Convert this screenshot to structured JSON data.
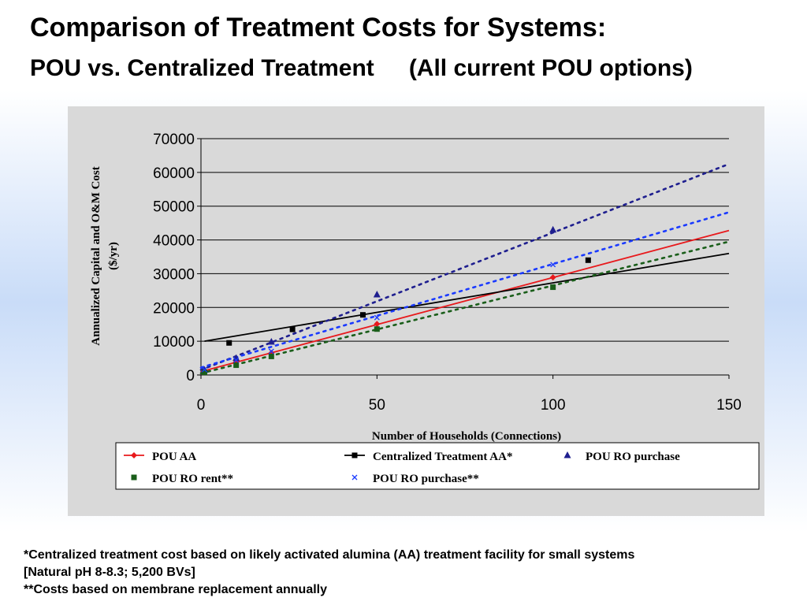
{
  "header": {
    "title": "Comparison of Treatment Costs for Systems:",
    "subtitle_left": "POU vs. Centralized Treatment",
    "subtitle_right": "(All current POU options)"
  },
  "footnotes": {
    "line1": "*Centralized treatment cost based on likely activated alumina (AA) treatment facility for small systems",
    "line2": "[Natural pH 8-8.3; 5,200 BVs]",
    "line3": "**Costs based on membrane replacement annually"
  },
  "chart_data": {
    "type": "scatter",
    "xlabel": "Number of Households (Connections)",
    "ylabel": "Annualized Capital and O&M Cost ($/yr)",
    "xlim": [
      0,
      150
    ],
    "ylim": [
      0,
      70000
    ],
    "xticks": [
      0,
      50,
      100,
      150
    ],
    "yticks": [
      0,
      10000,
      20000,
      30000,
      40000,
      50000,
      60000,
      70000
    ],
    "grid": "horizontal",
    "legend_position": "bottom",
    "series": [
      {
        "name": "POU AA",
        "color": "#e8191c",
        "marker": "diamond",
        "trendline": "solid",
        "points": [
          [
            1,
            1300
          ],
          [
            10,
            3900
          ],
          [
            20,
            6500
          ],
          [
            50,
            15100
          ],
          [
            100,
            28900
          ]
        ],
        "trend": [
          [
            0,
            1000
          ],
          [
            150,
            42800
          ]
        ]
      },
      {
        "name": "Centralized Treatment AA*",
        "color": "#000000",
        "marker": "square",
        "trendline": "solid",
        "points": [
          [
            8,
            9500
          ],
          [
            26,
            13500
          ],
          [
            46,
            17800
          ],
          [
            110,
            34000
          ]
        ],
        "trend": [
          [
            1,
            10000
          ],
          [
            150,
            36000
          ]
        ]
      },
      {
        "name": "POU RO purchase",
        "color": "#1f1f8f",
        "marker": "triangle",
        "trendline": "dotted",
        "points": [
          [
            1,
            1500
          ],
          [
            10,
            5000
          ],
          [
            20,
            9800
          ],
          [
            50,
            23800
          ],
          [
            100,
            43000
          ]
        ],
        "trend": [
          [
            0,
            1500
          ],
          [
            150,
            62500
          ]
        ]
      },
      {
        "name": "POU RO rent**",
        "color": "#1a5e1a",
        "marker": "square",
        "trendline": "dotted",
        "points": [
          [
            1,
            800
          ],
          [
            10,
            2900
          ],
          [
            20,
            5500
          ],
          [
            50,
            13600
          ],
          [
            100,
            26000
          ]
        ],
        "trend": [
          [
            0,
            500
          ],
          [
            150,
            39500
          ]
        ]
      },
      {
        "name": "POU RO purchase**",
        "color": "#1a3aff",
        "marker": "x",
        "trendline": "dotted",
        "points": [
          [
            1,
            1600
          ],
          [
            10,
            4400
          ],
          [
            20,
            7000
          ],
          [
            50,
            17000
          ],
          [
            100,
            32700
          ]
        ],
        "trend": [
          [
            0,
            2200
          ],
          [
            150,
            48200
          ]
        ]
      }
    ]
  }
}
